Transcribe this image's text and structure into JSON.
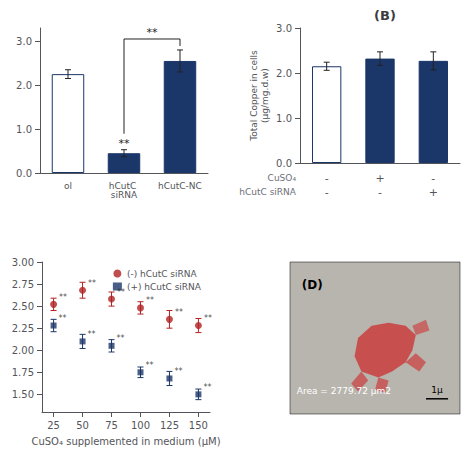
{
  "chart_data": [
    {
      "type": "bar",
      "categories": [
        "ol",
        "hCutC siRNA",
        "hCutC-NC"
      ],
      "values": [
        2.25,
        0.45,
        2.55
      ],
      "errors": [
        0.1,
        0.08,
        0.25
      ],
      "color": "#1b3668",
      "colors": [
        "white",
        "#1b3668",
        "#1b3668"
      ],
      "ylim": [
        0,
        3.3
      ],
      "yticks": [
        {
          "value": 0,
          "label": "0.0"
        },
        {
          "value": 1.0,
          "label": "1.0"
        },
        {
          "value": 2.0,
          "label": "2.0"
        },
        {
          "value": 3.0,
          "label": "3.0"
        }
      ],
      "grid": false,
      "annotations": [
        {
          "text": "**",
          "x": [
            "hCutC siRNA",
            "hCutC-NC"
          ],
          "y": 3.05
        },
        {
          "text": "**",
          "x": "hCutC siRNA"
        }
      ]
    },
    {
      "type": "bar",
      "title": "(B)",
      "ylabel": "Total Copper in cells\n(μg/mg.d.w)",
      "categories": [
        "-\n-",
        "+\n-",
        "-\n+"
      ],
      "row_labels": [
        "CuSO₄",
        "hCutC siRNA"
      ],
      "values": [
        2.15,
        2.32,
        2.27
      ],
      "errors": [
        0.09,
        0.15,
        0.2
      ],
      "color": "#1b3668",
      "colors": [
        "white",
        "#1b3668",
        "#1b3668"
      ],
      "ylim": [
        0,
        3.0
      ],
      "yticks": [
        {
          "value": 0,
          "label": "0.0"
        },
        {
          "value": 1.0,
          "label": "1.0"
        },
        {
          "value": 2.0,
          "label": "2.0"
        },
        {
          "value": 3.0,
          "label": "3.0"
        }
      ],
      "grid": false
    },
    {
      "type": "scatter",
      "xlabel": "CuSO₄ supplemented in medium (μM)",
      "xlim": [
        15,
        160
      ],
      "xticks": [
        25,
        50,
        75,
        100,
        125,
        150
      ],
      "ylim": [
        1.3,
        3.0
      ],
      "yticks": [
        {
          "value": 1.5,
          "label": "1.50"
        },
        1.75,
        {
          "value": 2.0,
          "label": "2.00"
        },
        2.25,
        {
          "value": 2.5,
          "label": "2.50"
        },
        2.75,
        {
          "value": 3.0,
          "label": "3.00"
        }
      ],
      "grid": false,
      "legend": "upper right",
      "series": [
        {
          "name": "(-) hCutC siRNA",
          "color": "#b22222",
          "marker": "circle",
          "x": [
            25,
            50,
            75,
            100,
            125,
            150
          ],
          "values": [
            2.52,
            2.68,
            2.58,
            2.48,
            2.35,
            2.28
          ],
          "errors": [
            0.07,
            0.09,
            0.08,
            0.07,
            0.1,
            0.08
          ],
          "annotations": [
            "**",
            "**",
            "**",
            "**",
            "**",
            "**"
          ]
        },
        {
          "name": "(+) hCutC siRNA",
          "color": "#1b3668",
          "marker": "square",
          "x": [
            25,
            50,
            75,
            100,
            125,
            150
          ],
          "values": [
            2.28,
            2.1,
            2.05,
            1.75,
            1.68,
            1.5
          ],
          "errors": [
            0.07,
            0.08,
            0.07,
            0.06,
            0.08,
            0.06
          ],
          "annotations": [
            "**",
            "**",
            "**",
            "**",
            "**",
            "**"
          ]
        }
      ]
    },
    {
      "type": "image",
      "title": "(D)",
      "colors": [
        "#b8b5ae",
        "#cc3333"
      ],
      "annotations": [
        "Area = 2779.72 μm2",
        "1μ"
      ]
    }
  ]
}
